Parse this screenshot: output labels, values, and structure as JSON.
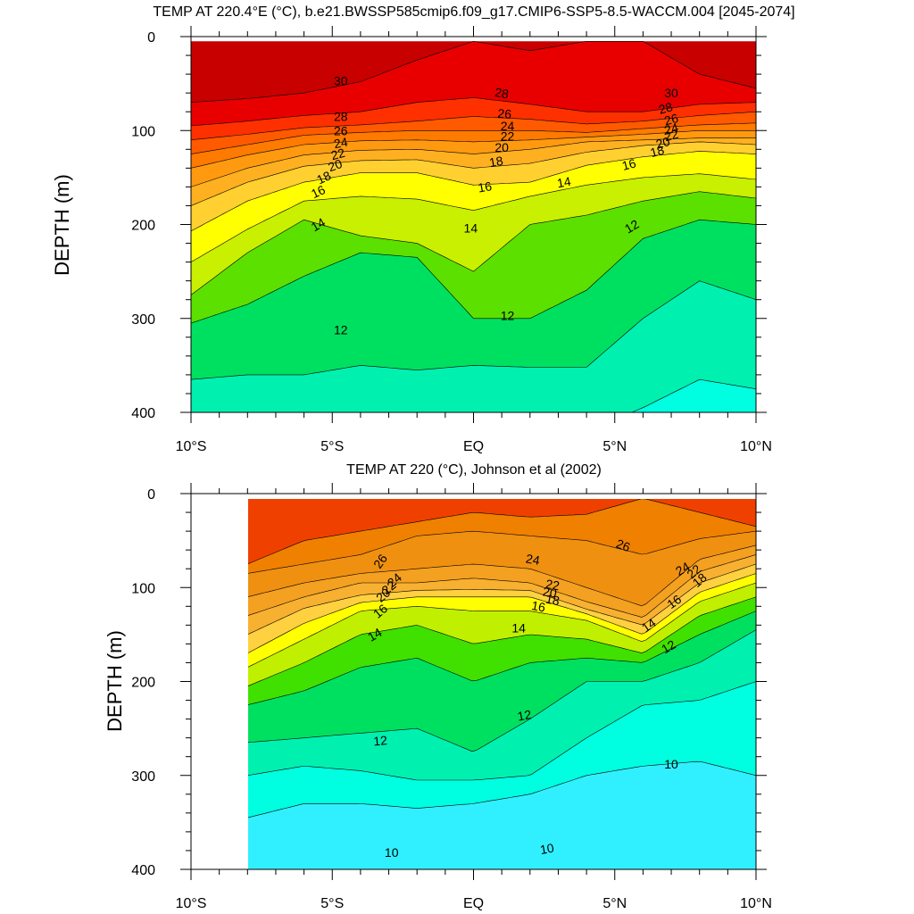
{
  "chart_data": [
    {
      "type": "contour",
      "title": "TEMP AT 220.4°E (°C), b.e21.BWSSP585cmip6.f09_g17.CMIP6-SSP5-8.5-WACCM.004 [2045-2074]",
      "ylabel": "DEPTH (m)",
      "xlabel": "",
      "x_ticks": [
        "10°S",
        "5°S",
        "EQ",
        "5°N",
        "10°N"
      ],
      "x_tick_values": [
        -10,
        -5,
        0,
        5,
        10
      ],
      "y_ticks": [
        "0",
        "100",
        "200",
        "300",
        "400"
      ],
      "y_tick_values": [
        0,
        100,
        200,
        300,
        400
      ],
      "xlim": [
        -10,
        10
      ],
      "ylim": [
        400,
        0
      ],
      "data_xrange": [
        -10,
        10
      ],
      "data_top_depth": 5,
      "contour_levels": [
        10,
        11,
        12,
        13,
        14,
        15,
        16,
        17,
        18,
        19,
        20,
        21,
        22,
        23,
        24,
        25,
        26,
        27,
        28,
        29,
        30,
        31
      ],
      "isotherm_depths": {
        "lats": [
          -10,
          -8,
          -6,
          -4,
          -2,
          0,
          2,
          4,
          6,
          8,
          10
        ],
        "t30": [
          70,
          66,
          60,
          48,
          25,
          5,
          15,
          5,
          5,
          40,
          55
        ],
        "t28": [
          95,
          90,
          84,
          80,
          70,
          65,
          72,
          80,
          80,
          72,
          70
        ],
        "t26": [
          110,
          104,
          97,
          94,
          90,
          85,
          88,
          93,
          90,
          84,
          80
        ],
        "t24": [
          125,
          115,
          105,
          102,
          100,
          100,
          100,
          102,
          98,
          94,
          92
        ],
        "t22": [
          140,
          126,
          115,
          111,
          110,
          112,
          110,
          107,
          104,
          100,
          100
        ],
        "t20": [
          160,
          140,
          126,
          121,
          120,
          125,
          120,
          112,
          110,
          108,
          108
        ],
        "t18": [
          180,
          155,
          138,
          132,
          131,
          140,
          135,
          123,
          116,
          112,
          115
        ],
        "t16": [
          207,
          175,
          155,
          145,
          145,
          158,
          155,
          137,
          128,
          122,
          125
        ],
        "t14": [
          240,
          205,
          175,
          170,
          173,
          185,
          170,
          158,
          150,
          146,
          152
        ],
        "t13": [
          275,
          230,
          195,
          212,
          220,
          250,
          200,
          190,
          175,
          165,
          172
        ],
        "t12": [
          305,
          285,
          255,
          230,
          235,
          300,
          300,
          270,
          215,
          195,
          200
        ],
        "t11": [
          365,
          360,
          360,
          350,
          355,
          350,
          352,
          352,
          300,
          260,
          280
        ],
        "t10": [
          420,
          420,
          420,
          420,
          420,
          420,
          420,
          420,
          395,
          365,
          375
        ]
      },
      "labels": [
        {
          "text": "30",
          "lat": -4.7,
          "depth": 47,
          "angle": 0
        },
        {
          "text": "28",
          "lat": 1.0,
          "depth": 60,
          "angle": 10
        },
        {
          "text": "30",
          "lat": 7.0,
          "depth": 60,
          "angle": 0
        },
        {
          "text": "28",
          "lat": -4.7,
          "depth": 85,
          "angle": 0
        },
        {
          "text": "26",
          "lat": 1.1,
          "depth": 82,
          "angle": 5
        },
        {
          "text": "28",
          "lat": 6.8,
          "depth": 76,
          "angle": -15
        },
        {
          "text": "26",
          "lat": -4.7,
          "depth": 100,
          "angle": 0
        },
        {
          "text": "24",
          "lat": 1.2,
          "depth": 95,
          "angle": 0
        },
        {
          "text": "26",
          "lat": 7.0,
          "depth": 88,
          "angle": -15
        },
        {
          "text": "24",
          "lat": -4.7,
          "depth": 113,
          "angle": -10
        },
        {
          "text": "22",
          "lat": 1.2,
          "depth": 106,
          "angle": 0
        },
        {
          "text": "24",
          "lat": 7.0,
          "depth": 98,
          "angle": -15
        },
        {
          "text": "22",
          "lat": -4.8,
          "depth": 125,
          "angle": -15
        },
        {
          "text": "20",
          "lat": 1.0,
          "depth": 118,
          "angle": 0
        },
        {
          "text": "22",
          "lat": 7.0,
          "depth": 105,
          "angle": -15
        },
        {
          "text": "20",
          "lat": -4.9,
          "depth": 137,
          "angle": -20
        },
        {
          "text": "18",
          "lat": 0.8,
          "depth": 133,
          "angle": -10
        },
        {
          "text": "20",
          "lat": 6.7,
          "depth": 113,
          "angle": -15
        },
        {
          "text": "18",
          "lat": -5.3,
          "depth": 150,
          "angle": -25
        },
        {
          "text": "16",
          "lat": 0.4,
          "depth": 160,
          "angle": -10
        },
        {
          "text": "18",
          "lat": 6.5,
          "depth": 122,
          "angle": -15
        },
        {
          "text": "16",
          "lat": -5.5,
          "depth": 165,
          "angle": -25
        },
        {
          "text": "16",
          "lat": 5.5,
          "depth": 136,
          "angle": -15
        },
        {
          "text": "14",
          "lat": -5.5,
          "depth": 200,
          "angle": -30
        },
        {
          "text": "14",
          "lat": -0.1,
          "depth": 204,
          "angle": 0
        },
        {
          "text": "14",
          "lat": 3.2,
          "depth": 155,
          "angle": -10
        },
        {
          "text": "12",
          "lat": 5.6,
          "depth": 202,
          "angle": -30
        },
        {
          "text": "12",
          "lat": 1.2,
          "depth": 297,
          "angle": 0
        },
        {
          "text": "12",
          "lat": -4.7,
          "depth": 312,
          "angle": 0
        }
      ]
    },
    {
      "type": "contour",
      "title": "TEMP AT 220 (°C), Johnson et al (2002)",
      "ylabel": "DEPTH (m)",
      "xlabel": "",
      "x_ticks": [
        "10°S",
        "5°S",
        "EQ",
        "5°N",
        "10°N"
      ],
      "x_tick_values": [
        -10,
        -5,
        0,
        5,
        10
      ],
      "y_ticks": [
        "0",
        "100",
        "200",
        "300",
        "400"
      ],
      "y_tick_values": [
        0,
        100,
        200,
        300,
        400
      ],
      "xlim": [
        -10,
        10
      ],
      "ylim": [
        400,
        0
      ],
      "data_xrange": [
        -8,
        10
      ],
      "data_top_depth": 5,
      "contour_levels": [
        9,
        10,
        11,
        12,
        13,
        14,
        15,
        16,
        17,
        18,
        19,
        20,
        21,
        22,
        23,
        24,
        25,
        26,
        27
      ],
      "isotherm_depths": {
        "lats": [
          -8,
          -6,
          -4,
          -2,
          0,
          2,
          4,
          6,
          8,
          10
        ],
        "t27": [
          75,
          50,
          40,
          30,
          20,
          25,
          22,
          5,
          20,
          35
        ],
        "t26": [
          85,
          75,
          65,
          45,
          40,
          45,
          50,
          65,
          48,
          40
        ],
        "t24": [
          110,
          95,
          85,
          80,
          75,
          80,
          100,
          120,
          70,
          55
        ],
        "t22": [
          130,
          110,
          95,
          95,
          90,
          95,
          115,
          132,
          83,
          65
        ],
        "t20": [
          150,
          122,
          108,
          103,
          102,
          103,
          123,
          140,
          95,
          75
        ],
        "t18": [
          170,
          138,
          116,
          110,
          110,
          110,
          128,
          150,
          105,
          85
        ],
        "t16": [
          185,
          155,
          125,
          120,
          125,
          125,
          135,
          158,
          115,
          95
        ],
        "t14": [
          205,
          180,
          150,
          140,
          160,
          150,
          155,
          170,
          130,
          110
        ],
        "t13": [
          225,
          210,
          185,
          175,
          200,
          180,
          175,
          180,
          150,
          125
        ],
        "t12": [
          265,
          260,
          255,
          250,
          275,
          240,
          200,
          200,
          180,
          145
        ],
        "t11": [
          300,
          290,
          295,
          305,
          305,
          300,
          260,
          225,
          220,
          200
        ],
        "t10": [
          345,
          330,
          330,
          335,
          330,
          320,
          300,
          290,
          285,
          300
        ],
        "t9": [
          420,
          420,
          420,
          420,
          420,
          420,
          420,
          420,
          420,
          420
        ]
      },
      "labels": [
        {
          "text": "26",
          "lat": -3.3,
          "depth": 72,
          "angle": -55
        },
        {
          "text": "24",
          "lat": 2.1,
          "depth": 70,
          "angle": 10
        },
        {
          "text": "26",
          "lat": 5.3,
          "depth": 55,
          "angle": 20
        },
        {
          "text": "24",
          "lat": -2.8,
          "depth": 92,
          "angle": -40
        },
        {
          "text": "24",
          "lat": 7.4,
          "depth": 80,
          "angle": -30
        },
        {
          "text": "22",
          "lat": 7.8,
          "depth": 83,
          "angle": -40
        },
        {
          "text": "22",
          "lat": -3.0,
          "depth": 100,
          "angle": -40
        },
        {
          "text": "22",
          "lat": 2.8,
          "depth": 97,
          "angle": 10
        },
        {
          "text": "20",
          "lat": -3.2,
          "depth": 108,
          "angle": -40
        },
        {
          "text": "20",
          "lat": 2.7,
          "depth": 105,
          "angle": 10
        },
        {
          "text": "18",
          "lat": 8.0,
          "depth": 92,
          "angle": -40
        },
        {
          "text": "18",
          "lat": 2.8,
          "depth": 113,
          "angle": 10
        },
        {
          "text": "16",
          "lat": -3.3,
          "depth": 125,
          "angle": -40
        },
        {
          "text": "16",
          "lat": 2.3,
          "depth": 120,
          "angle": 10
        },
        {
          "text": "16",
          "lat": 7.1,
          "depth": 115,
          "angle": -35
        },
        {
          "text": "14",
          "lat": -3.5,
          "depth": 150,
          "angle": -30
        },
        {
          "text": "14",
          "lat": 1.6,
          "depth": 143,
          "angle": 0
        },
        {
          "text": "14",
          "lat": 6.2,
          "depth": 140,
          "angle": -35
        },
        {
          "text": "12",
          "lat": 6.9,
          "depth": 163,
          "angle": -30
        },
        {
          "text": "12",
          "lat": 1.8,
          "depth": 236,
          "angle": -10
        },
        {
          "text": "12",
          "lat": -3.3,
          "depth": 263,
          "angle": -5
        },
        {
          "text": "10",
          "lat": 7.0,
          "depth": 288,
          "angle": 0
        },
        {
          "text": "10",
          "lat": 2.6,
          "depth": 378,
          "angle": -10
        },
        {
          "text": "10",
          "lat": -2.9,
          "depth": 382,
          "angle": 0
        }
      ]
    }
  ]
}
